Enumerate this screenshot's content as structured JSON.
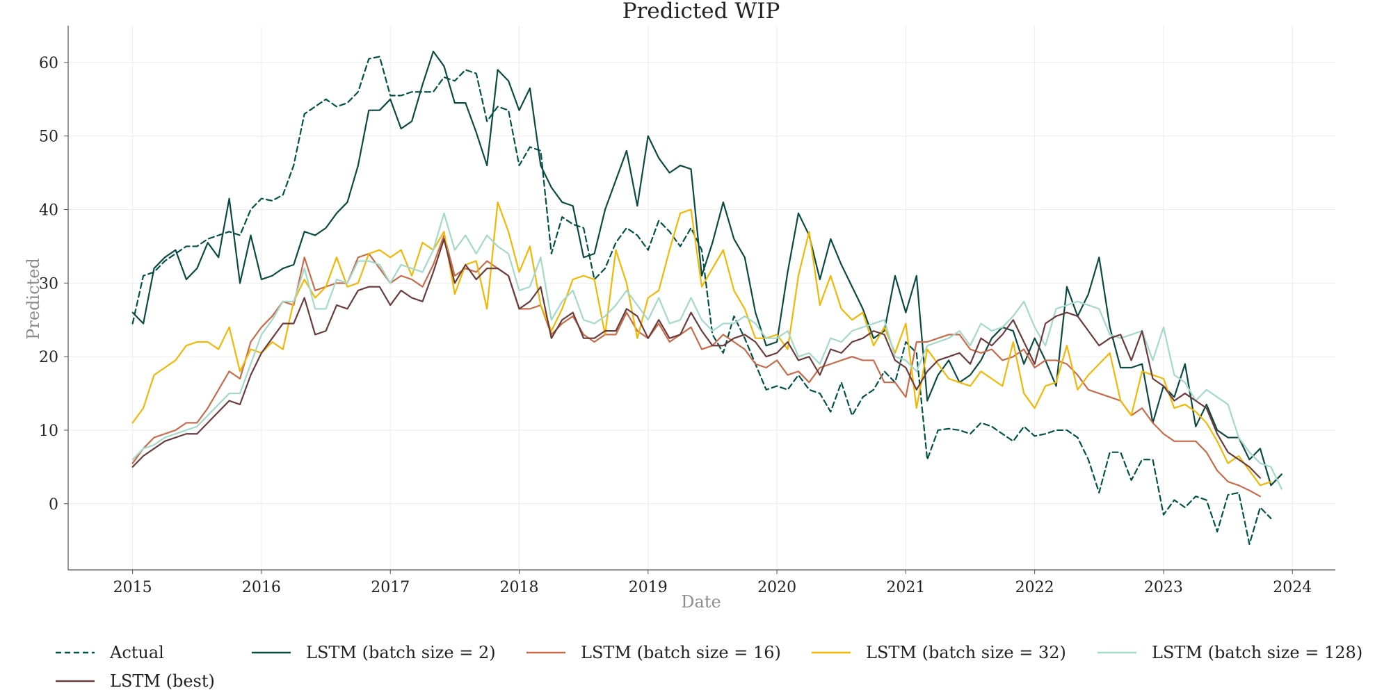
{
  "chart_data": {
    "type": "line",
    "title": "Predicted WIP",
    "xlabel": "Date",
    "ylabel": "Predicted",
    "xlim": [
      "2014-07",
      "2024-05"
    ],
    "ylim": [
      -9,
      65
    ],
    "x_ticks": [
      "2015",
      "2016",
      "2017",
      "2018",
      "2019",
      "2020",
      "2021",
      "2022",
      "2023",
      "2024"
    ],
    "y_ticks": [
      0,
      10,
      20,
      30,
      40,
      50,
      60
    ],
    "grid": true,
    "legend_position": "bottom",
    "x_start": "2015-01",
    "x_frequency": "monthly",
    "series": [
      {
        "name": "Actual",
        "color": "#005248",
        "dashed": true,
        "values": [
          24.5,
          31,
          31.5,
          33,
          34,
          35,
          35,
          36,
          36.5,
          37,
          36.5,
          40,
          41.5,
          41.2,
          42,
          46,
          53,
          54,
          55,
          54,
          54.5,
          56,
          60.5,
          60.8,
          55.5,
          55.5,
          56,
          56,
          56,
          58,
          57.5,
          59,
          58.5,
          52,
          54,
          53.5,
          46,
          48.5,
          48,
          34,
          39,
          38,
          37.5,
          30.5,
          32,
          35.5,
          37.5,
          36.5,
          34.5,
          38.5,
          37,
          35,
          37.5,
          34.5,
          23,
          20.5,
          25.5,
          22.5,
          19,
          15.5,
          16,
          15.5,
          17.5,
          15.5,
          15,
          12.5,
          16.5,
          12,
          14.5,
          15.5,
          18,
          16.5,
          22,
          20.5,
          6,
          10,
          10.2,
          10,
          9.5,
          11,
          10.5,
          9.5,
          8.5,
          10.5,
          9.2,
          9.5,
          10,
          10,
          9,
          6,
          1.5,
          7,
          7,
          3.2,
          6,
          6,
          -1.5,
          0.5,
          -0.5,
          1,
          0.5,
          -3.8,
          1.2,
          1.5,
          -5.5,
          -0.5,
          -2
        ]
      },
      {
        "name": "LSTM (batch size = 2)",
        "color": "#0b4a42",
        "dashed": false,
        "values": [
          26,
          24.5,
          32,
          33.5,
          34.5,
          30.5,
          32,
          35.5,
          33.5,
          41.5,
          30,
          36.5,
          30.5,
          31,
          32,
          32.5,
          37,
          36.5,
          37.5,
          39.5,
          41,
          46,
          53.5,
          53.5,
          55,
          51,
          52,
          57,
          61.5,
          59.5,
          54.5,
          54.5,
          50.5,
          46,
          59,
          57.5,
          53.5,
          56.5,
          46,
          43,
          41,
          40.5,
          33.5,
          34,
          40,
          44,
          48,
          40.5,
          50,
          47,
          45,
          46,
          45.5,
          31,
          35.5,
          41,
          36,
          33.5,
          26,
          21.5,
          22,
          31.5,
          39.5,
          36.5,
          30.5,
          36,
          32.5,
          29.5,
          26.5,
          22.5,
          23.5,
          31,
          26,
          31,
          14,
          17.5,
          19.5,
          16.5,
          17.5,
          19.5,
          22.5,
          24,
          23.5,
          19,
          22.5,
          19.5,
          16,
          29.5,
          25.5,
          28.5,
          33.5,
          24,
          18.5,
          18.5,
          19,
          11,
          16,
          14.5,
          19,
          10.5,
          13.5,
          10,
          9,
          9,
          6,
          7.5,
          2.5,
          4
        ]
      },
      {
        "name": "LSTM (batch size = 16)",
        "color": "#c76a4a",
        "dashed": false,
        "values": [
          5.5,
          7.5,
          9,
          9.5,
          10,
          11,
          11,
          13,
          15.5,
          18,
          17,
          22,
          24,
          25.5,
          27.5,
          27,
          33.5,
          29,
          29.5,
          30,
          30,
          33.5,
          34,
          32,
          30,
          31,
          30.5,
          29.5,
          32.5,
          36.5,
          31,
          32,
          31.5,
          33,
          32,
          31,
          26.5,
          26.5,
          27,
          23,
          24.5,
          25.5,
          23,
          22,
          23,
          23,
          26,
          23.5,
          22.5,
          24.5,
          22,
          23,
          24,
          21,
          21.5,
          23,
          22,
          21,
          19,
          18.5,
          19.5,
          17.5,
          18,
          16.5,
          18.5,
          19,
          19.5,
          20,
          19.5,
          19.5,
          16.5,
          16.5,
          14.5,
          22,
          22,
          22.5,
          23,
          23,
          21,
          20.5,
          21,
          19.5,
          20,
          21,
          18.5,
          19.5,
          19.5,
          19,
          17.5,
          15.5,
          15,
          14.5,
          14,
          12,
          13,
          11,
          9.5,
          8.5,
          8.5,
          8.5,
          7,
          4.5,
          3,
          2.5,
          1.8,
          1
        ]
      },
      {
        "name": "LSTM (batch size = 32)",
        "color": "#f2b705",
        "dashed": false,
        "values": [
          11,
          13,
          17.5,
          18.5,
          19.5,
          21.5,
          22,
          22,
          21,
          24,
          18,
          21,
          20.5,
          22,
          21,
          27.5,
          30.5,
          28,
          29.5,
          33.5,
          29.5,
          30,
          34,
          34.5,
          33.5,
          34.5,
          31,
          35.5,
          34.5,
          37,
          28.5,
          32.5,
          33,
          26.5,
          41,
          37,
          31.5,
          35,
          27,
          23.5,
          26.5,
          30.5,
          31,
          30.5,
          23,
          34.5,
          30,
          22.5,
          28,
          29,
          34.5,
          39.5,
          40,
          29.5,
          32,
          34.5,
          29,
          26.5,
          22.5,
          22.5,
          23,
          21,
          31,
          37,
          27,
          31,
          26.5,
          25,
          26,
          21.5,
          24,
          20.5,
          24.5,
          13,
          21,
          19,
          17,
          16.5,
          16,
          18,
          17,
          16,
          22,
          15,
          13,
          16,
          16.5,
          21.5,
          15.5,
          17.5,
          19,
          20.5,
          14,
          12,
          18,
          17.5,
          17,
          13,
          13.5,
          12.5,
          11,
          8.5,
          5.5,
          6.5,
          4.5,
          2.5,
          3
        ]
      },
      {
        "name": "LSTM (batch size = 128)",
        "color": "#a3d9c8",
        "dashed": false,
        "values": [
          6,
          7.5,
          8,
          9,
          9.5,
          10,
          10.5,
          12,
          13.5,
          15,
          15,
          19,
          23,
          25,
          27.5,
          27.5,
          32,
          26.5,
          26.5,
          30.5,
          30,
          33,
          33,
          32.5,
          30,
          32.5,
          32,
          31.5,
          34.5,
          39.5,
          34.5,
          36.5,
          34,
          36.5,
          35,
          34,
          29,
          29.5,
          33.5,
          25,
          27.5,
          29,
          25,
          24.5,
          25.5,
          27,
          29,
          27,
          25,
          28,
          24.5,
          25,
          28,
          25,
          23.5,
          24.5,
          24.5,
          25.5,
          24.5,
          22.5,
          22.5,
          23.5,
          20,
          20.5,
          19,
          22.5,
          22,
          23.5,
          24,
          24.5,
          25,
          20,
          19.5,
          18,
          21.5,
          22,
          22.5,
          23.5,
          21.5,
          24.5,
          23.5,
          24,
          25.5,
          27.5,
          24,
          21.5,
          26.5,
          27,
          27.5,
          27,
          26.5,
          23,
          22.5,
          23,
          23.5,
          19.5,
          24,
          17.5,
          16.5,
          14,
          15.5,
          14.5,
          13.5,
          9,
          7,
          5.5,
          5,
          2
        ]
      },
      {
        "name": "LSTM (best)",
        "color": "#6b3b3b",
        "dashed": false,
        "values": [
          5,
          6.5,
          7.5,
          8.5,
          9,
          9.5,
          9.5,
          11,
          12.5,
          14,
          13.5,
          17.5,
          20.5,
          22.5,
          24.5,
          24.5,
          28,
          23,
          23.5,
          27,
          26.5,
          29,
          29.5,
          29.5,
          27,
          29,
          28,
          27.5,
          31.5,
          36,
          30,
          32.5,
          30.5,
          32,
          32,
          31,
          26.5,
          27.5,
          29.5,
          22.5,
          25,
          26,
          22.5,
          22.5,
          23.5,
          23.5,
          26.5,
          25.5,
          22.5,
          25,
          22.5,
          23,
          26,
          23.5,
          21.5,
          21.5,
          22.5,
          23,
          22,
          20,
          20.5,
          22,
          19.5,
          20,
          17.5,
          21,
          20.5,
          22,
          22.5,
          23.5,
          23,
          19.5,
          18.5,
          15.5,
          18,
          19.5,
          20,
          20.5,
          19,
          22.5,
          21.5,
          23,
          25,
          22,
          19,
          24.5,
          25.5,
          26,
          25.5,
          23.5,
          21.5,
          22.5,
          23,
          19.5,
          23.5,
          17,
          16,
          14,
          15,
          14,
          13,
          9.5,
          7,
          6,
          5,
          3.5
        ]
      }
    ]
  }
}
